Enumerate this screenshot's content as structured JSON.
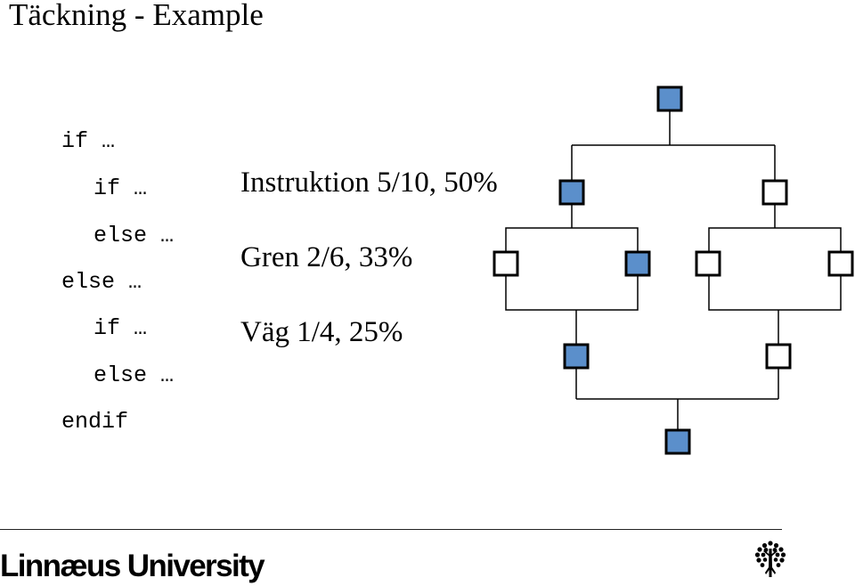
{
  "title": "Täckning - Example",
  "code": {
    "lines": [
      "if …",
      "if …",
      "else …",
      "else …",
      "if …",
      "else …",
      "endif"
    ]
  },
  "coverage": {
    "instruction": "Instruktion 5/10, 50%",
    "branch": "Gren 2/6, 33%",
    "path": "Väg 1/4, 25%"
  },
  "graph": {
    "covered_color": "#5b8fcb",
    "uncovered_color": "#ffffff",
    "nodes": [
      {
        "id": "entry",
        "covered": true
      },
      {
        "id": "if-outer-then",
        "covered": true
      },
      {
        "id": "if-outer-else",
        "covered": false
      },
      {
        "id": "if-inner-then",
        "covered": false
      },
      {
        "id": "if-inner-else",
        "covered": true
      },
      {
        "id": "if-second-then",
        "covered": false
      },
      {
        "id": "if-second-else",
        "covered": false
      },
      {
        "id": "merge-left",
        "covered": true
      },
      {
        "id": "merge-right",
        "covered": false
      },
      {
        "id": "exit",
        "covered": true
      }
    ]
  },
  "footer": {
    "university": "Linnæus University",
    "logo_icon": "tree-icon"
  }
}
